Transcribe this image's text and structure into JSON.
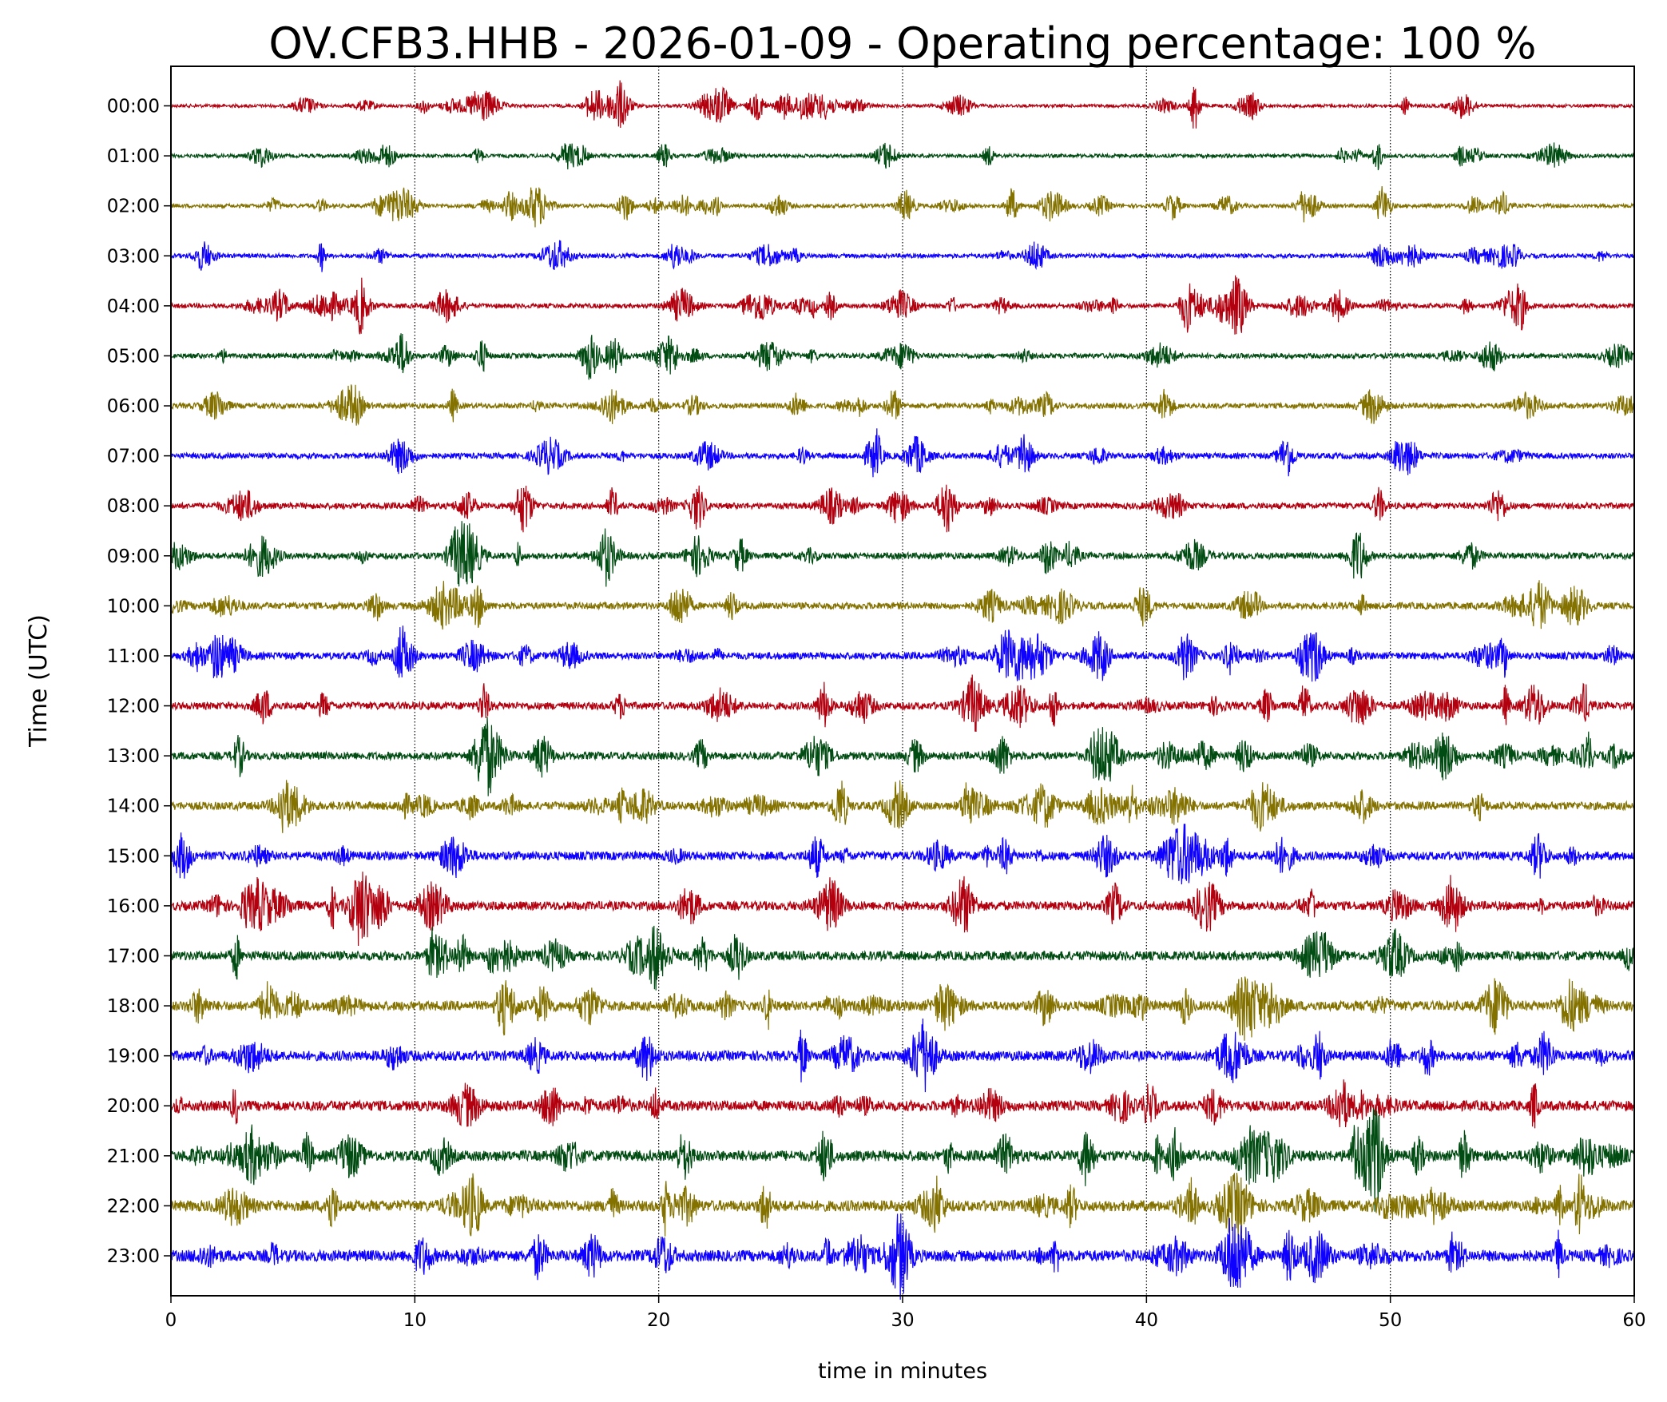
{
  "chart_data": {
    "type": "helicorder",
    "title": "OV.CFB3.HHB - 2026-01-09 - Operating percentage: 100 %",
    "xlabel": "time in minutes",
    "ylabel": "Time (UTC)",
    "xlim": [
      0,
      60
    ],
    "xticks": [
      0,
      10,
      20,
      30,
      40,
      50,
      60
    ],
    "grid": true,
    "colors": [
      "#B2000F",
      "#004C12",
      "#847200",
      "#0E01FF"
    ],
    "rows": [
      "00:00",
      "01:00",
      "02:00",
      "03:00",
      "04:00",
      "05:00",
      "06:00",
      "07:00",
      "08:00",
      "09:00",
      "10:00",
      "11:00",
      "12:00",
      "13:00",
      "14:00",
      "15:00",
      "16:00",
      "17:00",
      "18:00",
      "19:00",
      "20:00",
      "21:00",
      "22:00",
      "23:00"
    ]
  }
}
